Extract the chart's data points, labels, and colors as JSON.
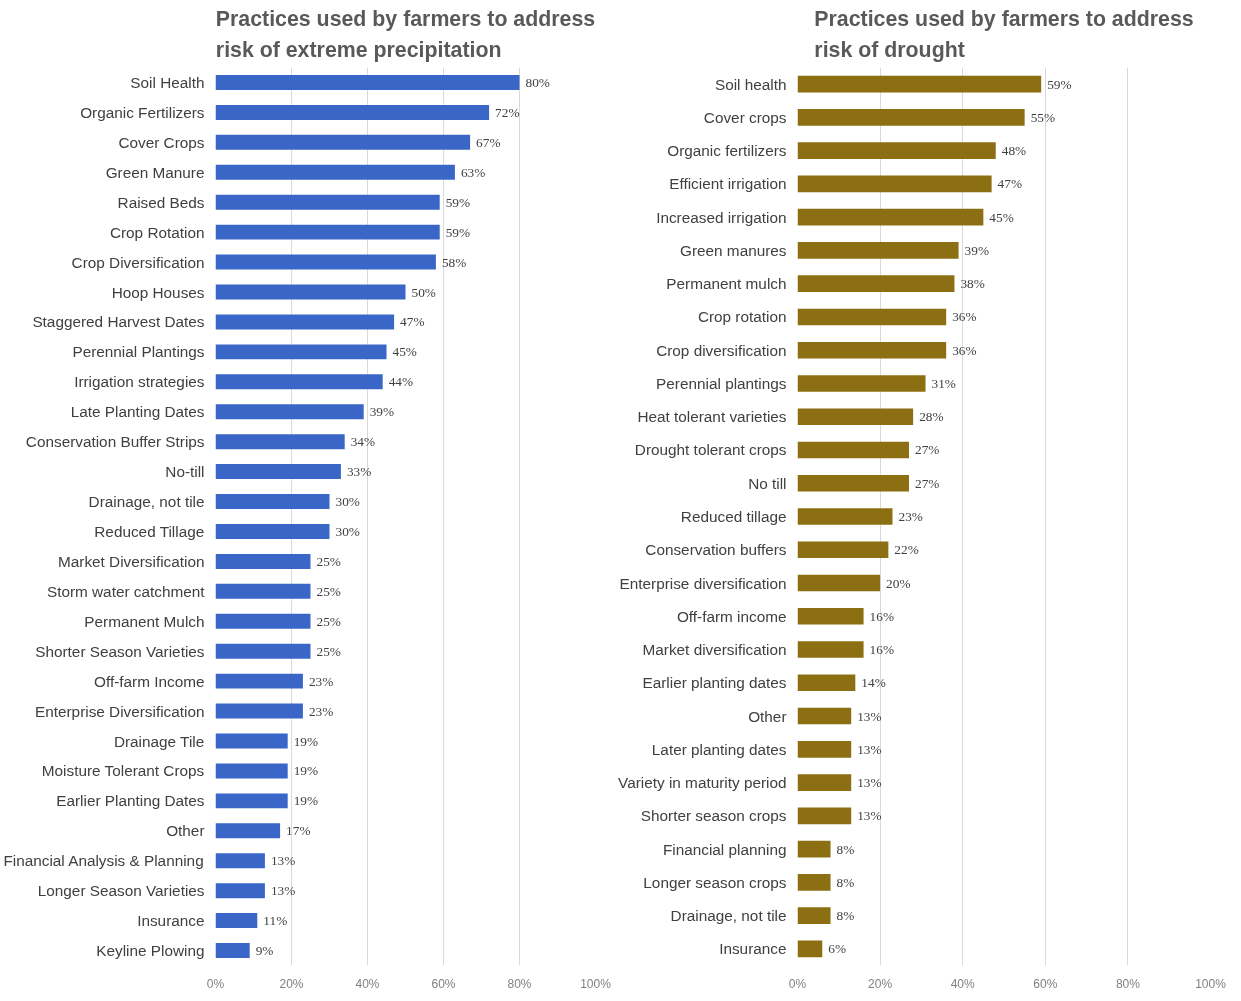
{
  "chart_data": [
    {
      "type": "bar",
      "orientation": "horizontal",
      "title": "Practices used by farmers to address\nrisk of extreme precipitation",
      "color": "#3a66c8",
      "categories": [
        "Soil Health",
        "Organic Fertilizers",
        "Cover Crops",
        "Green Manure",
        "Raised Beds",
        "Crop Rotation",
        "Crop Diversification",
        "Hoop Houses",
        "Staggered Harvest Dates",
        "Perennial Plantings",
        "Irrigation strategies",
        "Late Planting Dates",
        "Conservation Buffer Strips",
        "No-till",
        "Drainage, not tile",
        "Reduced Tillage",
        "Market Diversification",
        "Storm water catchment",
        "Permanent Mulch",
        "Shorter Season Varieties",
        "Off-farm Income",
        "Enterprise Diversification",
        "Drainage Tile",
        "Moisture Tolerant Crops",
        "Earlier Planting Dates",
        "Other",
        "Financial Analysis & Planning",
        "Longer Season Varieties",
        "Insurance",
        "Keyline Plowing"
      ],
      "values": [
        80,
        72,
        67,
        63,
        59,
        59,
        58,
        50,
        47,
        45,
        44,
        39,
        34,
        33,
        30,
        30,
        25,
        25,
        25,
        25,
        23,
        23,
        19,
        19,
        19,
        17,
        13,
        13,
        11,
        9
      ],
      "value_labels": [
        "80%",
        "72%",
        "67%",
        "63%",
        "59%",
        "59%",
        "58%",
        "50%",
        "47%",
        "45%",
        "44%",
        "39%",
        "34%",
        "33%",
        "30%",
        "30%",
        "25%",
        "25%",
        "25%",
        "25%",
        "23%",
        "23%",
        "19%",
        "19%",
        "19%",
        "17%",
        "13%",
        "13%",
        "11%",
        "9%"
      ],
      "xlim": [
        0,
        100
      ],
      "xticks": [
        {
          "value": 0,
          "label": "0%"
        },
        {
          "value": 20,
          "label": "20%"
        },
        {
          "value": 40,
          "label": "40%"
        },
        {
          "value": 60,
          "label": "60%"
        },
        {
          "value": 80,
          "label": "80%"
        },
        {
          "value": 100,
          "label": "100%"
        }
      ],
      "grid": "x"
    },
    {
      "type": "bar",
      "orientation": "horizontal",
      "title": "Practices used by farmers to address\nrisk of drought",
      "color": "#8c6f12",
      "categories": [
        "Soil health",
        "Cover crops",
        "Organic fertilizers",
        "Efficient irrigation",
        "Increased irrigation",
        "Green manures",
        "Permanent mulch",
        "Crop rotation",
        "Crop diversification",
        "Perennial plantings",
        "Heat tolerant varieties",
        "Drought tolerant crops",
        "No till",
        "Reduced tillage",
        "Conservation buffers",
        "Enterprise diversification",
        "Off-farm income",
        "Market diversification",
        "Earlier planting dates",
        "Other",
        "Later planting dates",
        "Variety in maturity period",
        "Shorter season crops",
        "Financial planning",
        "Longer season crops",
        "Drainage, not tile",
        "Insurance"
      ],
      "values": [
        59,
        55,
        48,
        47,
        45,
        39,
        38,
        36,
        36,
        31,
        28,
        27,
        27,
        23,
        22,
        20,
        16,
        16,
        14,
        13,
        13,
        13,
        13,
        8,
        8,
        8,
        6
      ],
      "value_labels": [
        "59%",
        "55%",
        "48%",
        "47%",
        "45%",
        "39%",
        "38%",
        "36%",
        "36%",
        "31%",
        "28%",
        "27%",
        "27%",
        "23%",
        "22%",
        "20%",
        "16%",
        "16%",
        "14%",
        "13%",
        "13%",
        "13%",
        "13%",
        "8%",
        "8%",
        "8%",
        "6%"
      ],
      "xlim": [
        0,
        100
      ],
      "xticks": [
        {
          "value": 0,
          "label": "0%"
        },
        {
          "value": 20,
          "label": "20%"
        },
        {
          "value": 40,
          "label": "40%"
        },
        {
          "value": 60,
          "label": "60%"
        },
        {
          "value": 80,
          "label": "80%"
        },
        {
          "value": 100,
          "label": "100%"
        }
      ],
      "grid": "x"
    }
  ]
}
